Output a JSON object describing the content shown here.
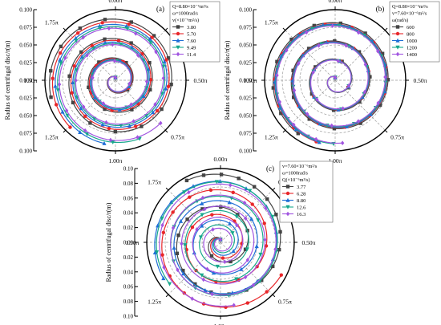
{
  "chart_data": [
    {
      "type": "line",
      "panel": "(a)",
      "ylabel": "Radius of centrifugal disc/r(m)",
      "yticks": [
        "0.100",
        "0.075",
        "0.050",
        "0.025",
        "0.000",
        "0.025",
        "0.050",
        "0.075",
        "0.100"
      ],
      "angle_labels": [
        "0.00π",
        "0.25π",
        "0.50π",
        "0.75π",
        "1.00π",
        "1.25π",
        "1.50π",
        "1.75π"
      ],
      "rlim": [
        0,
        0.1
      ],
      "legend_header": [
        "Q=8.80×10⁻⁶m³/s",
        "ω=1000rad/s",
        "v(×10⁻⁶m²/s)"
      ],
      "legend_position": "top-right",
      "series": [
        {
          "name": "3.80",
          "color": "#444444",
          "marker": "square",
          "turn_rise": 0.0275,
          "end_r": 0.0945
        },
        {
          "name": "5.70",
          "color": "#e8262a",
          "marker": "circle",
          "turn_rise": 0.0262,
          "end_r": 0.0925
        },
        {
          "name": "7.60",
          "color": "#1f6fd6",
          "marker": "triangle",
          "turn_rise": 0.025,
          "end_r": 0.0908
        },
        {
          "name": "9.49",
          "color": "#17a88c",
          "marker": "triangle-down",
          "turn_rise": 0.024,
          "end_r": 0.0895
        },
        {
          "name": "11.4",
          "color": "#a155e0",
          "marker": "diamond",
          "turn_rise": 0.0232,
          "end_r": 0.0882
        }
      ]
    },
    {
      "type": "line",
      "panel": "(b)",
      "ylabel": "Radius of centrifugal disc/r(m)",
      "yticks": [
        "0.100",
        "0.075",
        "0.050",
        "0.025",
        "0.000",
        "0.025",
        "0.050",
        "0.075",
        "0.100"
      ],
      "angle_labels": [
        "0.00π",
        "0.25π",
        "0.50π",
        "0.75π",
        "1.00π",
        "1.25π",
        "1.50π",
        "1.75π"
      ],
      "rlim": [
        0,
        0.1
      ],
      "legend_header": [
        "Q=8.80×10⁻⁶m³/s",
        "v=7.60×10⁻⁶m²/s",
        "ω(rad/s)"
      ],
      "legend_position": "top-right",
      "series": [
        {
          "name": "600",
          "color": "#444444",
          "marker": "square",
          "turn_rise": 0.0258,
          "end_r": 0.0918
        },
        {
          "name": "800",
          "color": "#e8262a",
          "marker": "circle",
          "turn_rise": 0.0252,
          "end_r": 0.091
        },
        {
          "name": "1000",
          "color": "#1f6fd6",
          "marker": "triangle",
          "turn_rise": 0.025,
          "end_r": 0.0905
        },
        {
          "name": "1200",
          "color": "#17a88c",
          "marker": "triangle-down",
          "turn_rise": 0.0246,
          "end_r": 0.09
        },
        {
          "name": "1400",
          "color": "#a155e0",
          "marker": "diamond",
          "turn_rise": 0.0243,
          "end_r": 0.0895
        }
      ]
    },
    {
      "type": "line",
      "panel": "(c)",
      "ylabel": "Radius of centrifugal disc/r(m)",
      "yticks": [
        "0.10",
        "0.08",
        "0.06",
        "0.04",
        "0.02",
        "0.00",
        "0.02",
        "0.04",
        "0.06",
        "0.08",
        "0.10"
      ],
      "angle_labels": [
        "0.00π",
        "0.25π",
        "0.50π",
        "0.75π",
        "1.00π",
        "1.25π",
        "1.50π",
        "1.75π"
      ],
      "rlim": [
        0,
        0.1
      ],
      "legend_header": [
        "v=7.60×10⁻⁶m²/s",
        "ω=1000rad/s",
        "Q(×10⁻⁶m³/s)"
      ],
      "legend_position": "top-right",
      "series": [
        {
          "name": "3.77",
          "color": "#444444",
          "marker": "square",
          "turn_rise": 0.044,
          "end_r": 0.0955
        },
        {
          "name": "6.28",
          "color": "#e8262a",
          "marker": "circle",
          "turn_rise": 0.0335,
          "end_r": 0.0935
        },
        {
          "name": "8.80",
          "color": "#1f6fd6",
          "marker": "triangle",
          "turn_rise": 0.0262,
          "end_r": 0.0915
        },
        {
          "name": "12.6",
          "color": "#17a88c",
          "marker": "triangle-down",
          "turn_rise": 0.0195,
          "end_r": 0.089
        },
        {
          "name": "16.3",
          "color": "#a155e0",
          "marker": "diamond",
          "turn_rise": 0.015,
          "end_r": 0.087
        }
      ]
    }
  ]
}
